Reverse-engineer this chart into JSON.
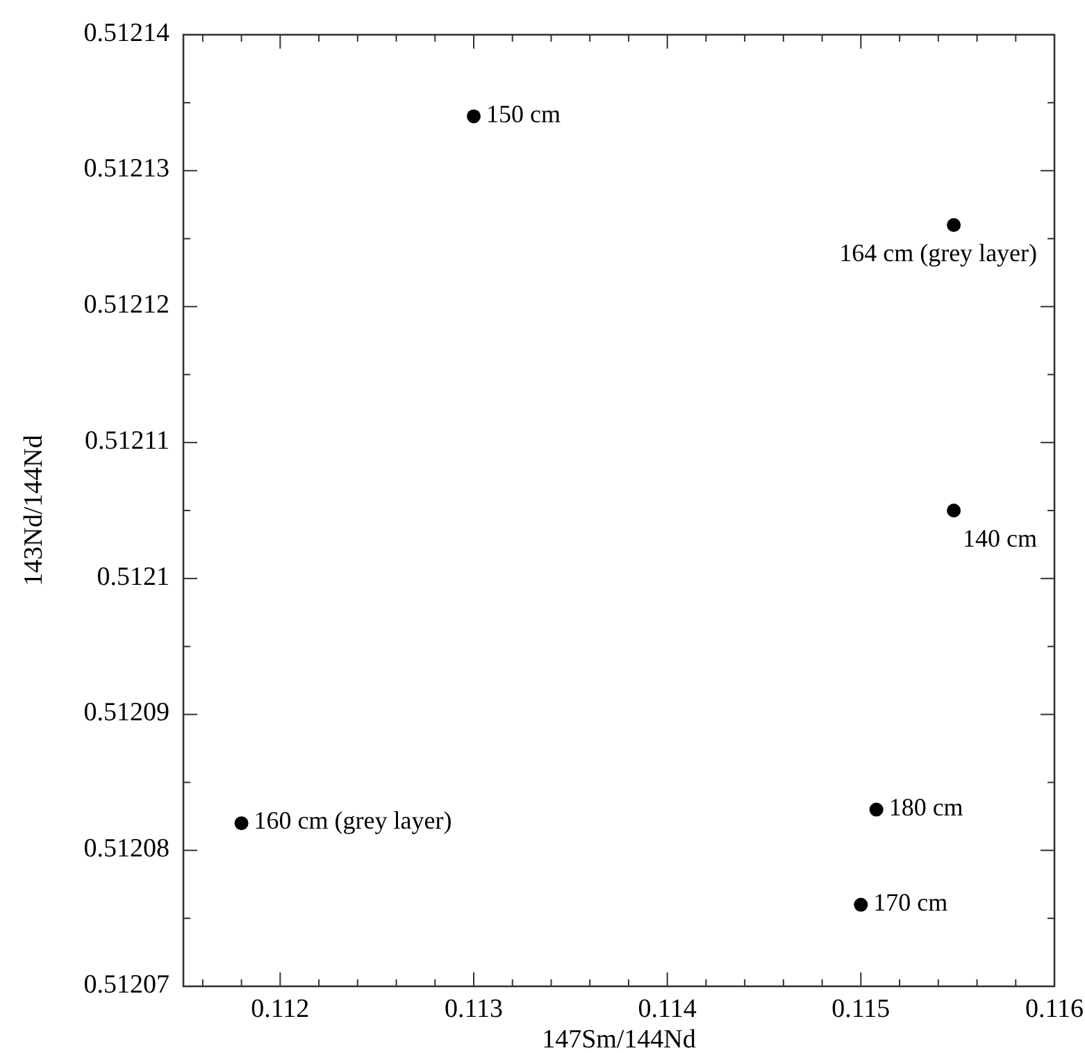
{
  "chart_data": {
    "type": "scatter",
    "xlabel": "147Sm/144Nd",
    "ylabel": "143Nd/144Nd",
    "x": [
      0.1118,
      0.113,
      0.11548,
      0.11548,
      0.115,
      0.11508
    ],
    "values": [
      0.512082,
      0.512134,
      0.512126,
      0.512105,
      0.512076,
      0.512083
    ],
    "color": "#000000",
    "marker": "circle",
    "xlim": [
      0.1115,
      0.116
    ],
    "xticks": [
      {
        "value": 0.1116,
        "label": null
      },
      {
        "value": 0.1118,
        "label": null
      },
      0.112,
      {
        "value": 0.1122,
        "label": null
      },
      {
        "value": 0.1124,
        "label": null
      },
      {
        "value": 0.1126,
        "label": null
      },
      {
        "value": 0.1128,
        "label": null
      },
      0.113,
      {
        "value": 0.1132,
        "label": null
      },
      {
        "value": 0.1134,
        "label": null
      },
      {
        "value": 0.1136,
        "label": null
      },
      {
        "value": 0.1138,
        "label": null
      },
      0.114,
      {
        "value": 0.1142,
        "label": null
      },
      {
        "value": 0.1144,
        "label": null
      },
      {
        "value": 0.1146,
        "label": null
      },
      {
        "value": 0.1148,
        "label": null
      },
      0.115,
      {
        "value": 0.1152,
        "label": null
      },
      {
        "value": 0.1154,
        "label": null
      },
      {
        "value": 0.1156,
        "label": null
      },
      {
        "value": 0.1158,
        "label": null
      },
      0.116
    ],
    "ylim": [
      0.51207,
      0.51214
    ],
    "yticks": [
      0.51207,
      {
        "value": 0.512075,
        "label": null
      },
      0.51208,
      {
        "value": 0.512085,
        "label": null
      },
      0.51209,
      {
        "value": 0.512095,
        "label": null
      },
      {
        "value": 0.5121,
        "label": "0.5121"
      },
      {
        "value": 0.512105,
        "label": null
      },
      0.51211,
      {
        "value": 0.512115,
        "label": null
      },
      0.51212,
      {
        "value": 0.512125,
        "label": null
      },
      0.51213,
      {
        "value": 0.512135,
        "label": null
      },
      0.51214
    ],
    "grid": false,
    "annotations": [
      {
        "text": "160 cm (grey layer)",
        "x": 0.1118,
        "y": 0.512082
      },
      {
        "text": "150 cm",
        "x": 0.113,
        "y": 0.512134
      },
      {
        "text": "164 cm (grey layer)",
        "x": 0.11548,
        "y": 0.512126
      },
      {
        "text": "140 cm",
        "x": 0.11548,
        "y": 0.512105
      },
      {
        "text": "170 cm",
        "x": 0.115,
        "y": 0.512076
      },
      {
        "text": "180 cm",
        "x": 0.11508,
        "y": 0.512083
      }
    ]
  }
}
